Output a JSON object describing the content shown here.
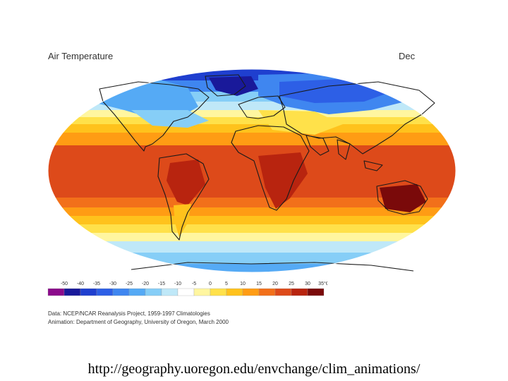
{
  "map": {
    "title": "Air Temperature",
    "month": "Dec",
    "legend_ticks": [
      "-50",
      "-40",
      "-35",
      "-30",
      "-25",
      "-20",
      "-15",
      "-10",
      "-5",
      "0",
      "5",
      "10",
      "15",
      "20",
      "25",
      "30",
      "35°C"
    ],
    "legend_colors": [
      "#8b0a8b",
      "#19199a",
      "#1f3fcf",
      "#2d5fe6",
      "#3f86f0",
      "#55aaf5",
      "#86cef7",
      "#bfe8f8",
      "#ffffff",
      "#fff6a0",
      "#ffe14a",
      "#ffc21c",
      "#ff9c14",
      "#f2701a",
      "#dd4a1a",
      "#b8240f",
      "#7a0a0a"
    ],
    "credits": {
      "data": "Data:  NCEP/NCAR Reanalysis Project, 1959-1997 Climatologies",
      "animation": "Animation:  Department of Geography, University of Oregon, March 2000"
    }
  },
  "caption": {
    "url": "http://geography.uoregon.edu/envchange/clim_animations/"
  }
}
